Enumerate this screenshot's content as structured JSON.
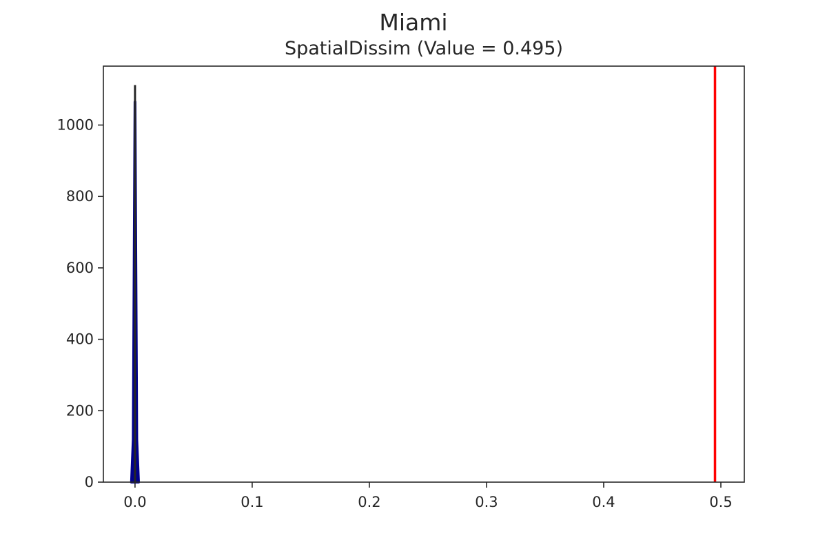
{
  "chart_data": {
    "type": "area",
    "title": "Miami",
    "subtitle": "SpatialDissim (Value = 0.495)",
    "xlabel": "",
    "ylabel": "",
    "xlim": [
      -0.027,
      0.52
    ],
    "ylim": [
      0,
      1165
    ],
    "xticks": [
      0.0,
      0.1,
      0.2,
      0.3,
      0.4,
      0.5
    ],
    "xtick_labels": [
      "0.0",
      "0.1",
      "0.2",
      "0.3",
      "0.4",
      "0.5"
    ],
    "yticks": [
      0,
      200,
      400,
      600,
      800,
      1000
    ],
    "ytick_labels": [
      "0",
      "200",
      "400",
      "600",
      "800",
      "1000"
    ],
    "grid": false,
    "legend": "none",
    "series": [
      {
        "kind": "density",
        "color": "#00008b",
        "x": [
          -0.003,
          -0.0015,
          0.0,
          0.0015,
          0.003
        ],
        "y": [
          0,
          120,
          1065,
          120,
          0
        ]
      }
    ],
    "rug": {
      "color": "#262626",
      "x": 0.0,
      "top": 1112
    },
    "reference_line": {
      "x": 0.495,
      "color": "#ff0000"
    }
  }
}
